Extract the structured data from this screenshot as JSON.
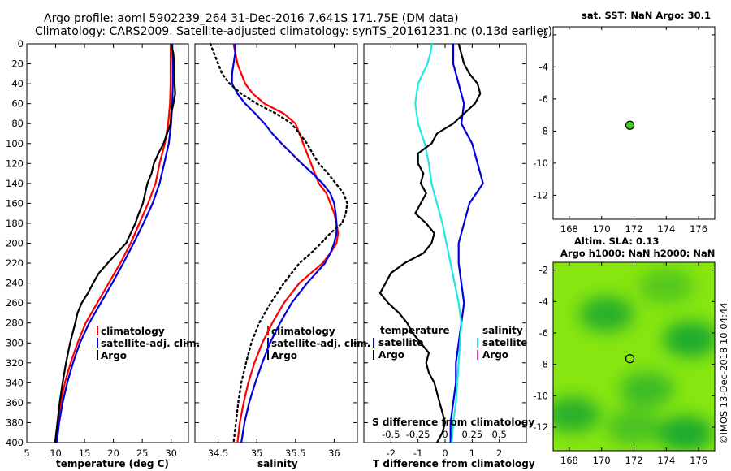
{
  "titles": {
    "line1": "Argo profile: aoml 5902239_264 31-Dec-2016 7.641S 171.75E (DM data)",
    "line2": "Climatology: CARS2009. Satellite-adjusted climatology: synTS_20161231.nc (0.13d earlier)",
    "sst": "sat. SST: NaN Argo: 30.1",
    "altim": "Altim. SLA: 0.13",
    "argo_h": "Argo h1000: NaN h2000: NaN",
    "imos": "©IMOS 13-Dec-2018 10:04:44"
  },
  "colors": {
    "climatology": "#ff0000",
    "satellite": "#0000dd",
    "argo": "#000000",
    "cyan": "#22e6e6",
    "marker": "#44cc22"
  },
  "chart_data": [
    {
      "type": "line",
      "name": "temperature",
      "xlabel": "temperature (deg C)",
      "xlim": [
        5,
        33
      ],
      "ylim": [
        400,
        0
      ],
      "xticks": [
        5,
        10,
        15,
        20,
        25,
        30
      ],
      "yticks": [
        0,
        20,
        40,
        60,
        80,
        100,
        120,
        140,
        160,
        180,
        200,
        220,
        240,
        260,
        280,
        300,
        320,
        340,
        360,
        380,
        400
      ],
      "legend": [
        "climatology",
        "satellite-adj. clim.",
        "Argo"
      ],
      "series": [
        {
          "name": "climatology",
          "color": "#ff0000",
          "depth": [
            0,
            20,
            40,
            60,
            80,
            100,
            120,
            140,
            160,
            180,
            200,
            220,
            240,
            260,
            280,
            300,
            320,
            340,
            360,
            380,
            400
          ],
          "values": [
            29.9,
            29.9,
            29.9,
            29.8,
            29.5,
            28.9,
            28.0,
            27.3,
            26.0,
            24.5,
            23.0,
            21.2,
            19.2,
            17.2,
            15.2,
            13.8,
            12.6,
            11.6,
            10.9,
            10.4,
            10.0
          ]
        },
        {
          "name": "satellite",
          "color": "#0000dd",
          "depth": [
            0,
            20,
            40,
            60,
            80,
            100,
            120,
            140,
            160,
            180,
            200,
            220,
            240,
            260,
            280,
            300,
            320,
            340,
            360,
            380,
            400
          ],
          "values": [
            30.2,
            30.3,
            30.3,
            30.2,
            30.0,
            29.6,
            28.8,
            28.0,
            26.8,
            25.2,
            23.5,
            21.7,
            19.8,
            17.8,
            15.8,
            14.2,
            13.0,
            12.0,
            11.2,
            10.6,
            10.2
          ]
        },
        {
          "name": "Argo",
          "color": "#000000",
          "depth": [
            0,
            10,
            20,
            30,
            40,
            50,
            60,
            70,
            80,
            90,
            100,
            110,
            120,
            130,
            140,
            150,
            160,
            170,
            180,
            190,
            200,
            210,
            220,
            230,
            240,
            250,
            260,
            270,
            280,
            300,
            320,
            340,
            360,
            380,
            400
          ],
          "values": [
            30.0,
            30.4,
            30.5,
            30.6,
            30.6,
            30.7,
            30.4,
            30.0,
            29.9,
            29.3,
            28.7,
            27.8,
            27.0,
            26.6,
            25.9,
            25.5,
            25.1,
            24.4,
            23.8,
            23.0,
            22.2,
            20.6,
            19.0,
            17.5,
            16.5,
            15.6,
            14.5,
            13.8,
            13.4,
            12.5,
            11.8,
            11.2,
            10.7,
            10.3,
            9.9
          ]
        }
      ]
    },
    {
      "type": "line",
      "name": "salinity",
      "xlabel": "salinity",
      "xlim": [
        34.2,
        36.3
      ],
      "ylim": [
        400,
        0
      ],
      "xticks": [
        34.5,
        35,
        35.5,
        36
      ],
      "legend": [
        "climatology",
        "satellite-adj. clim.",
        "Argo"
      ],
      "series": [
        {
          "name": "climatology",
          "color": "#ff0000",
          "depth": [
            0,
            20,
            30,
            40,
            50,
            60,
            70,
            80,
            90,
            100,
            110,
            120,
            130,
            140,
            150,
            160,
            170,
            180,
            190,
            200,
            210,
            220,
            240,
            260,
            280,
            300,
            320,
            340,
            360,
            380,
            400
          ],
          "values": [
            34.7,
            34.75,
            34.8,
            34.85,
            34.95,
            35.1,
            35.35,
            35.5,
            35.55,
            35.6,
            35.65,
            35.7,
            35.75,
            35.8,
            35.9,
            35.95,
            36.0,
            36.03,
            36.05,
            36.03,
            35.95,
            35.85,
            35.55,
            35.35,
            35.2,
            35.07,
            34.97,
            34.89,
            34.83,
            34.78,
            34.75
          ]
        },
        {
          "name": "satellite",
          "color": "#0000dd",
          "depth": [
            0,
            10,
            20,
            30,
            40,
            50,
            60,
            70,
            80,
            90,
            100,
            110,
            120,
            130,
            140,
            150,
            160,
            170,
            180,
            190,
            200,
            210,
            220,
            240,
            260,
            280,
            300,
            320,
            340,
            360,
            380,
            400
          ],
          "values": [
            34.72,
            34.72,
            34.7,
            34.68,
            34.68,
            34.75,
            34.85,
            34.98,
            35.1,
            35.2,
            35.32,
            35.45,
            35.58,
            35.72,
            35.85,
            35.95,
            36.0,
            36.02,
            36.03,
            36.03,
            36.0,
            35.95,
            35.88,
            35.65,
            35.45,
            35.3,
            35.17,
            35.07,
            34.98,
            34.9,
            34.84,
            34.8
          ]
        },
        {
          "name": "Argo",
          "color": "#000000",
          "dashed": true,
          "depth": [
            0,
            10,
            20,
            30,
            40,
            50,
            60,
            70,
            80,
            90,
            100,
            110,
            120,
            130,
            140,
            150,
            160,
            170,
            180,
            190,
            200,
            210,
            220,
            240,
            260,
            280,
            300,
            320,
            340,
            360,
            380,
            400
          ],
          "values": [
            34.4,
            34.45,
            34.5,
            34.55,
            34.65,
            34.8,
            35.0,
            35.25,
            35.45,
            35.55,
            35.65,
            35.72,
            35.8,
            35.92,
            36.02,
            36.12,
            36.17,
            36.15,
            36.1,
            35.95,
            35.83,
            35.7,
            35.55,
            35.35,
            35.18,
            35.03,
            34.93,
            34.86,
            34.8,
            34.76,
            34.73,
            34.7
          ]
        }
      ]
    },
    {
      "type": "line",
      "name": "difference",
      "xlabel": "T difference from climatology",
      "xlabel2": "S difference from climatology",
      "xlim": [
        -3,
        3
      ],
      "ylim": [
        400,
        0
      ],
      "xticks": [
        -2,
        -1,
        0,
        1,
        2
      ],
      "s_tick_labels": [
        "-0.5",
        "-0.25",
        "0",
        "0.25",
        "0.5"
      ],
      "legend_left_title": "temperature",
      "legend_right_title": "salinity",
      "legend_left": [
        "satellite",
        "Argo"
      ],
      "legend_right": [
        "satellite",
        "Argo"
      ],
      "series": [
        {
          "name": "T satellite",
          "color": "#0000dd",
          "depth": [
            0,
            20,
            40,
            60,
            80,
            100,
            120,
            140,
            160,
            180,
            200,
            220,
            240,
            260,
            280,
            300,
            320,
            340,
            360,
            380,
            400
          ],
          "values": [
            0.3,
            0.3,
            0.5,
            0.7,
            0.6,
            1.0,
            1.2,
            1.4,
            0.9,
            0.7,
            0.5,
            0.5,
            0.6,
            0.7,
            0.6,
            0.5,
            0.4,
            0.4,
            0.3,
            0.2,
            0.2
          ]
        },
        {
          "name": "S satellite",
          "color": "#22e6e6",
          "depth": [
            0,
            10,
            20,
            40,
            60,
            80,
            100,
            120,
            140,
            160,
            180,
            200,
            220,
            240,
            260,
            280,
            300,
            320,
            340,
            360,
            380,
            400
          ],
          "values": [
            -0.48,
            -0.55,
            -0.65,
            -1.0,
            -1.1,
            -1.0,
            -0.75,
            -0.6,
            -0.5,
            -0.3,
            -0.1,
            0.05,
            0.2,
            0.35,
            0.5,
            0.6,
            0.55,
            0.5,
            0.45,
            0.4,
            0.3,
            0.25
          ]
        },
        {
          "name": "T Argo",
          "color": "#000000",
          "depth": [
            0,
            10,
            20,
            30,
            40,
            50,
            60,
            70,
            80,
            90,
            100,
            110,
            120,
            130,
            140,
            150,
            160,
            170,
            180,
            190,
            200,
            210,
            220,
            230,
            240,
            250,
            260,
            270,
            280,
            290,
            300,
            310,
            320,
            330,
            340,
            350,
            360,
            370,
            380,
            390,
            400
          ],
          "values": [
            0.5,
            0.6,
            0.7,
            0.9,
            1.2,
            1.3,
            1.1,
            0.7,
            0.3,
            -0.3,
            -0.5,
            -1.0,
            -1.0,
            -0.8,
            -0.9,
            -0.7,
            -0.9,
            -1.1,
            -0.7,
            -0.4,
            -0.5,
            -0.8,
            -1.5,
            -2.0,
            -2.2,
            -2.4,
            -2.1,
            -1.7,
            -1.4,
            -1.2,
            -0.9,
            -0.6,
            -0.7,
            -0.6,
            -0.4,
            -0.3,
            -0.2,
            -0.1,
            0.0,
            -0.1,
            -0.3
          ]
        }
      ]
    },
    {
      "type": "scatter",
      "name": "sst_map",
      "xlim": [
        167,
        177
      ],
      "ylim": [
        -13.5,
        -1.5
      ],
      "xticks": [
        168,
        170,
        172,
        174,
        176
      ],
      "yticks": [
        -2,
        -4,
        -6,
        -8,
        -10,
        -12
      ],
      "points": [
        {
          "lon": 171.75,
          "lat": -7.641
        }
      ]
    },
    {
      "type": "heatmap",
      "name": "sla_map",
      "xlim": [
        167,
        177
      ],
      "ylim": [
        -13.5,
        -1.5
      ],
      "xticks": [
        168,
        170,
        172,
        174,
        176
      ],
      "yticks": [
        -2,
        -4,
        -6,
        -8,
        -10,
        -12
      ],
      "points": [
        {
          "lon": 171.75,
          "lat": -7.641
        }
      ],
      "dark_zones": [
        {
          "lon": 170.3,
          "lat": -4.8,
          "strength": 0.9
        },
        {
          "lon": 175.5,
          "lat": -6.4,
          "strength": 1.0
        },
        {
          "lon": 172.8,
          "lat": -9.6,
          "strength": 0.7
        },
        {
          "lon": 168.2,
          "lat": -11.2,
          "strength": 0.9
        },
        {
          "lon": 175.2,
          "lat": -12.4,
          "strength": 1.0
        },
        {
          "lon": 172.0,
          "lat": -12.0,
          "strength": 0.6
        },
        {
          "lon": 174.0,
          "lat": -3.0,
          "strength": 0.5
        }
      ]
    }
  ]
}
